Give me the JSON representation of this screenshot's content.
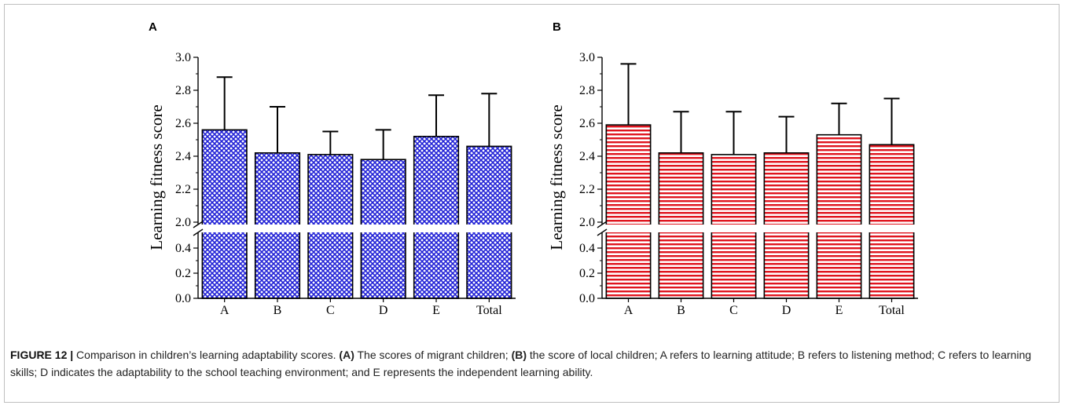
{
  "caption": {
    "lead": "FIGURE 12 |",
    "text_1": " Comparison in children’s learning adaptability scores. ",
    "ref_a": "(A)",
    "text_2": " The scores of migrant children; ",
    "ref_b": "(B)",
    "text_3": " the score of local children; A refers to learning attitude; B refers to listening method; C refers to learning skills; D indicates the adaptability to the school teaching environment; and E represents the independent learning ability."
  },
  "colors": {
    "migrant_fill": "#1f1fd6",
    "local_fill": "#e0141e",
    "axis": "#000000"
  },
  "chart_data": [
    {
      "panel": "A",
      "type": "bar",
      "fill_pattern": "crosshatch",
      "categories": [
        "A",
        "B",
        "C",
        "D",
        "E",
        "Total"
      ],
      "values": [
        2.56,
        2.42,
        2.41,
        2.38,
        2.52,
        2.46
      ],
      "error_upper": [
        2.88,
        2.7,
        2.55,
        2.56,
        2.77,
        2.78
      ],
      "ylabel": "Learning fitness score",
      "axis_break": true,
      "ylim_lower": [
        0,
        0.5
      ],
      "ylim_upper": [
        2.0,
        3.0
      ],
      "yticks_lower": [
        "0.0",
        "0.2",
        "0.4"
      ],
      "yticks_upper": [
        "2.0",
        "2.2",
        "2.4",
        "2.6",
        "2.8",
        "3.0"
      ]
    },
    {
      "panel": "B",
      "type": "bar",
      "fill_pattern": "horizontal-stripes",
      "categories": [
        "A",
        "B",
        "C",
        "D",
        "E",
        "Total"
      ],
      "values": [
        2.59,
        2.42,
        2.41,
        2.42,
        2.53,
        2.47
      ],
      "error_upper": [
        2.96,
        2.67,
        2.67,
        2.64,
        2.72,
        2.75
      ],
      "ylabel": "Learning fitness score",
      "axis_break": true,
      "ylim_lower": [
        0,
        0.5
      ],
      "ylim_upper": [
        2.0,
        3.0
      ],
      "yticks_lower": [
        "0.0",
        "0.2",
        "0.4"
      ],
      "yticks_upper": [
        "2.0",
        "2.2",
        "2.4",
        "2.6",
        "2.8",
        "3.0"
      ]
    }
  ]
}
